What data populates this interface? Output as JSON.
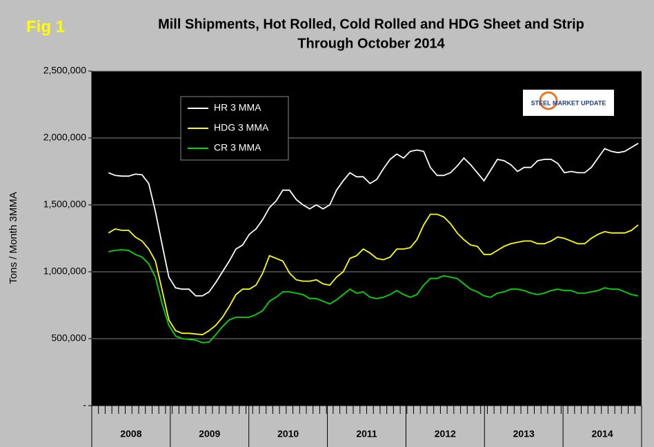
{
  "chart_data": {
    "type": "line",
    "fig_label": "Fig 1",
    "title": "Mill Shipments, Hot Rolled, Cold Rolled and HDG Sheet and Strip",
    "subtitle": "Through October 2014",
    "y_label": "Tons / Month 3MMA",
    "logo": "STEEL MARKET UPDATE",
    "year_labels": [
      "2008",
      "2009",
      "2010",
      "2011",
      "2012",
      "2013",
      "2014"
    ],
    "categories": [
      null,
      null,
      null,
      null,
      null,
      null,
      null,
      null,
      null,
      null,
      null,
      null,
      null,
      null,
      null,
      null,
      null,
      null,
      null,
      null,
      null,
      null,
      null,
      null,
      null,
      null,
      null,
      null,
      null,
      null,
      null,
      null,
      null,
      null,
      null,
      null,
      null,
      null,
      null,
      null,
      null,
      null,
      null,
      null,
      null,
      null,
      null,
      null,
      null,
      null,
      null,
      null,
      null,
      null,
      null,
      null,
      null,
      null,
      null,
      null,
      null,
      null,
      null,
      null,
      null,
      null,
      null,
      null,
      null,
      null,
      null,
      null,
      null,
      null,
      null,
      null,
      null,
      null,
      null,
      null,
      null,
      null
    ],
    "series": [
      {
        "name": "HR 3 MMA",
        "color": "#ffffff",
        "values": [
          null,
          null,
          1740000,
          1720000,
          1715000,
          1715000,
          1730000,
          1725000,
          1660000,
          1450000,
          1200000,
          960000,
          880000,
          870000,
          870000,
          820000,
          820000,
          850000,
          920000,
          1000000,
          1080000,
          1170000,
          1200000,
          1280000,
          1320000,
          1390000,
          1480000,
          1530000,
          1610000,
          1610000,
          1540000,
          1500000,
          1470000,
          1500000,
          1470000,
          1500000,
          1610000,
          1680000,
          1740000,
          1710000,
          1710000,
          1660000,
          1690000,
          1770000,
          1840000,
          1880000,
          1850000,
          1900000,
          1910000,
          1900000,
          1780000,
          1720000,
          1720000,
          1740000,
          1790000,
          1850000,
          1800000,
          1740000,
          1680000,
          1760000,
          1840000,
          1830000,
          1800000,
          1750000,
          1780000,
          1780000,
          1830000,
          1840000,
          1840000,
          1810000,
          1740000,
          1750000,
          1740000,
          1740000,
          1780000,
          1850000,
          1920000,
          1900000,
          1890000,
          1900000,
          1930000,
          1960000
        ]
      },
      {
        "name": "HDG 3 MMA",
        "color": "#ffff00",
        "values": [
          null,
          null,
          1290000,
          1320000,
          1310000,
          1310000,
          1260000,
          1230000,
          1170000,
          1080000,
          860000,
          640000,
          560000,
          540000,
          540000,
          535000,
          530000,
          560000,
          600000,
          660000,
          740000,
          830000,
          870000,
          870000,
          900000,
          990000,
          1120000,
          1100000,
          1080000,
          990000,
          940000,
          930000,
          930000,
          940000,
          910000,
          900000,
          960000,
          1000000,
          1100000,
          1120000,
          1170000,
          1140000,
          1100000,
          1090000,
          1110000,
          1170000,
          1170000,
          1180000,
          1240000,
          1350000,
          1430000,
          1430000,
          1410000,
          1360000,
          1290000,
          1240000,
          1200000,
          1190000,
          1130000,
          1130000,
          1160000,
          1190000,
          1210000,
          1220000,
          1230000,
          1230000,
          1210000,
          1210000,
          1230000,
          1260000,
          1250000,
          1230000,
          1210000,
          1210000,
          1250000,
          1280000,
          1300000,
          1290000,
          1290000,
          1290000,
          1310000,
          1350000
        ]
      },
      {
        "name": "CR 3 MMA",
        "color": "#00dd00",
        "values": [
          null,
          null,
          1150000,
          1160000,
          1165000,
          1160000,
          1130000,
          1110000,
          1060000,
          960000,
          760000,
          600000,
          520000,
          500000,
          495000,
          490000,
          470000,
          475000,
          530000,
          590000,
          640000,
          660000,
          660000,
          660000,
          680000,
          710000,
          780000,
          810000,
          850000,
          850000,
          840000,
          830000,
          800000,
          800000,
          780000,
          760000,
          790000,
          830000,
          870000,
          840000,
          850000,
          810000,
          800000,
          810000,
          830000,
          860000,
          830000,
          810000,
          830000,
          900000,
          950000,
          950000,
          970000,
          960000,
          950000,
          910000,
          870000,
          850000,
          820000,
          810000,
          840000,
          850000,
          870000,
          870000,
          860000,
          840000,
          830000,
          840000,
          860000,
          870000,
          860000,
          860000,
          840000,
          840000,
          850000,
          860000,
          880000,
          870000,
          870000,
          850000,
          830000,
          820000
        ]
      }
    ],
    "ylim": [
      0,
      2500000
    ],
    "yticks": [
      {
        "value": 0,
        "label": "-"
      },
      {
        "value": 500000,
        "label": "500,000"
      },
      {
        "value": 1000000,
        "label": "1,000,000"
      },
      {
        "value": 1500000,
        "label": "1,500,000"
      },
      {
        "value": 2000000,
        "label": "2,000,000"
      },
      {
        "value": 2500000,
        "label": "2,500,000"
      }
    ],
    "grid": true
  }
}
